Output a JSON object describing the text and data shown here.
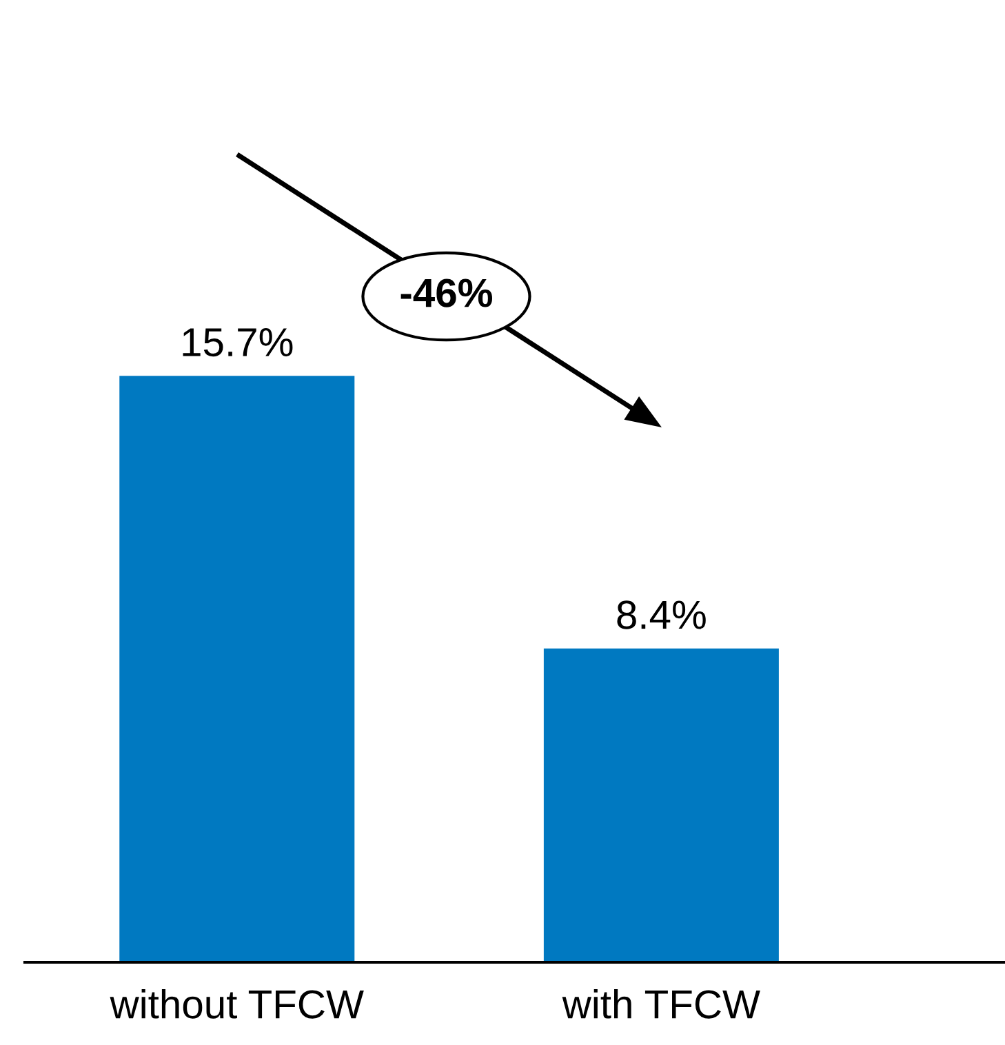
{
  "chart_data": {
    "type": "bar",
    "categories": [
      "without TFCW",
      "with TFCW"
    ],
    "values": [
      15.7,
      8.4
    ],
    "color": "#0079c1",
    "value_labels": [
      "15.7%",
      "8.4%"
    ],
    "annotations": [
      "-46%"
    ]
  }
}
